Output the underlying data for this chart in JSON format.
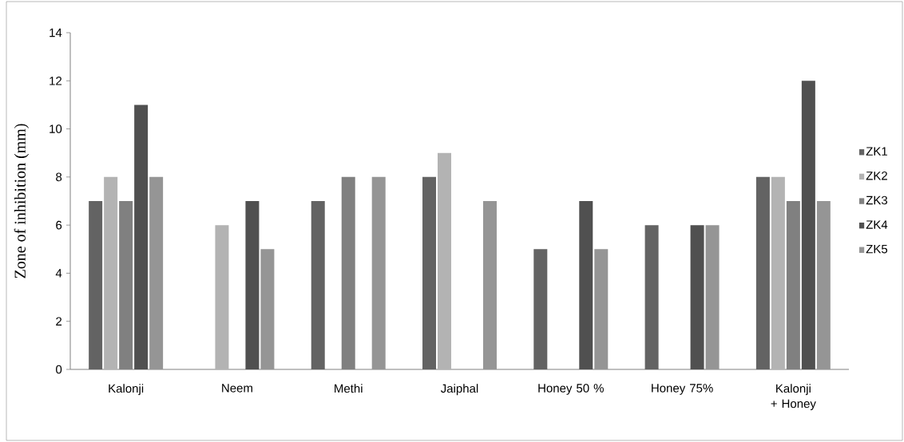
{
  "chart_data": {
    "type": "bar",
    "ylabel": "Zone of inhibition (mm)",
    "categories": [
      "Kalonji",
      "Neem",
      "Methi",
      "Jaiphal",
      "Honey 50 %",
      "Honey 75%",
      "Kalonji + Honey"
    ],
    "series": [
      {
        "name": "ZK1",
        "color": "#636363",
        "values": [
          7,
          null,
          7,
          8,
          5,
          6,
          8
        ]
      },
      {
        "name": "ZK2",
        "color": "#b3b3b3",
        "values": [
          8,
          6,
          null,
          9,
          null,
          null,
          8
        ]
      },
      {
        "name": "ZK3",
        "color": "#808080",
        "values": [
          7,
          null,
          8,
          null,
          null,
          null,
          7
        ]
      },
      {
        "name": "ZK4",
        "color": "#505050",
        "values": [
          11,
          7,
          null,
          null,
          7,
          6,
          12
        ]
      },
      {
        "name": "ZK5",
        "color": "#959595",
        "values": [
          8,
          5,
          8,
          7,
          5,
          6,
          7
        ]
      }
    ],
    "ylim": [
      0,
      14
    ],
    "yticks": [
      0,
      2,
      4,
      6,
      8,
      10,
      12,
      14
    ],
    "grid": false,
    "legend": "right"
  }
}
